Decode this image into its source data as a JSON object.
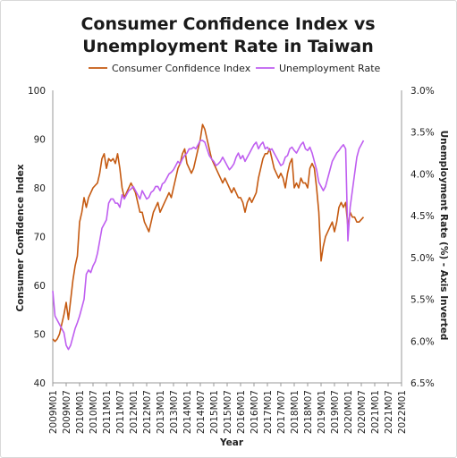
{
  "chart_data": {
    "type": "line",
    "title": "Consumer Confidence Index vs Unemployment Rate in Taiwan",
    "title_lines": [
      "Consumer Confidence Index vs",
      "Unemployment Rate in Taiwan"
    ],
    "xlabel": "Year",
    "ylabel": "Consumer Confidence Index",
    "y2label": "Unemployment Rate (%) - Axis Inverted",
    "ylim": [
      40,
      100
    ],
    "y2lim": [
      3.0,
      6.5
    ],
    "y2_inverted": true,
    "legend_position": "top",
    "yticks": [
      "40",
      "50",
      "60",
      "70",
      "80",
      "90",
      "100"
    ],
    "y2ticks": [
      "3.0%",
      "3.5%",
      "4.0%",
      "4.5%",
      "5.0%",
      "5.5%",
      "6.0%",
      "6.5%"
    ],
    "x_ticks": [
      "2009M01",
      "2009M07",
      "2010M01",
      "2010M07",
      "2011M01",
      "2011M07",
      "2012M01",
      "2012M07",
      "2013M01",
      "2013M07",
      "2014M01",
      "2014M07",
      "2015M01",
      "2015M07",
      "2016M01",
      "2016M07",
      "2017M01",
      "2017M07",
      "2018M01",
      "2018M07",
      "2019M01",
      "2019M07",
      "2020M01",
      "2020M07",
      "2021M01",
      "2021M07",
      "2022M01"
    ],
    "x_start": "2009M01",
    "x_end": "2022M01",
    "series": [
      {
        "name": "Consumer Confidence Index",
        "color": "#c55a11",
        "axis": "left",
        "points": [
          [
            0,
            49
          ],
          [
            1,
            48.5
          ],
          [
            2,
            49
          ],
          [
            3,
            50
          ],
          [
            4,
            52
          ],
          [
            5,
            54
          ],
          [
            6,
            56.5
          ],
          [
            7,
            53
          ],
          [
            8,
            57
          ],
          [
            9,
            61
          ],
          [
            10,
            64
          ],
          [
            11,
            66
          ],
          [
            12,
            73
          ],
          [
            13,
            75
          ],
          [
            14,
            78
          ],
          [
            15,
            76
          ],
          [
            16,
            78
          ],
          [
            17,
            79
          ],
          [
            18,
            80
          ],
          [
            19,
            80.5
          ],
          [
            20,
            81
          ],
          [
            21,
            83
          ],
          [
            22,
            86
          ],
          [
            23,
            87
          ],
          [
            24,
            84
          ],
          [
            25,
            86
          ],
          [
            26,
            85.5
          ],
          [
            27,
            86
          ],
          [
            28,
            85
          ],
          [
            29,
            87
          ],
          [
            30,
            84
          ],
          [
            31,
            80
          ],
          [
            32,
            78
          ],
          [
            33,
            79
          ],
          [
            34,
            80
          ],
          [
            35,
            81
          ],
          [
            36,
            80
          ],
          [
            37,
            79
          ],
          [
            38,
            77
          ],
          [
            39,
            75
          ],
          [
            40,
            75
          ],
          [
            41,
            73
          ],
          [
            42,
            72
          ],
          [
            43,
            71
          ],
          [
            44,
            73
          ],
          [
            45,
            75
          ],
          [
            46,
            76
          ],
          [
            47,
            77
          ],
          [
            48,
            75
          ],
          [
            49,
            76
          ],
          [
            50,
            77
          ],
          [
            51,
            78
          ],
          [
            52,
            79
          ],
          [
            53,
            78
          ],
          [
            54,
            80
          ],
          [
            55,
            82
          ],
          [
            56,
            84
          ],
          [
            57,
            85
          ],
          [
            58,
            87
          ],
          [
            59,
            88
          ],
          [
            60,
            85
          ],
          [
            61,
            84
          ],
          [
            62,
            83
          ],
          [
            63,
            84
          ],
          [
            64,
            86
          ],
          [
            65,
            88
          ],
          [
            66,
            90
          ],
          [
            67,
            93
          ],
          [
            68,
            92
          ],
          [
            69,
            90
          ],
          [
            70,
            88
          ],
          [
            71,
            86
          ],
          [
            72,
            85
          ],
          [
            73,
            84
          ],
          [
            74,
            83
          ],
          [
            75,
            82
          ],
          [
            76,
            81
          ],
          [
            77,
            82
          ],
          [
            78,
            81
          ],
          [
            79,
            80
          ],
          [
            80,
            79
          ],
          [
            81,
            80
          ],
          [
            82,
            79
          ],
          [
            83,
            78
          ],
          [
            84,
            78
          ],
          [
            85,
            77
          ],
          [
            86,
            75
          ],
          [
            87,
            77
          ],
          [
            88,
            78
          ],
          [
            89,
            77
          ],
          [
            90,
            78
          ],
          [
            91,
            79
          ],
          [
            92,
            82
          ],
          [
            93,
            84
          ],
          [
            94,
            86
          ],
          [
            95,
            87
          ],
          [
            96,
            87
          ],
          [
            97,
            88
          ],
          [
            98,
            86
          ],
          [
            99,
            84
          ],
          [
            100,
            83
          ],
          [
            101,
            82
          ],
          [
            102,
            83
          ],
          [
            103,
            82
          ],
          [
            104,
            80
          ],
          [
            105,
            83
          ],
          [
            106,
            85
          ],
          [
            107,
            86
          ],
          [
            108,
            80
          ],
          [
            109,
            81
          ],
          [
            110,
            80
          ],
          [
            111,
            82
          ],
          [
            112,
            81
          ],
          [
            113,
            81
          ],
          [
            114,
            80
          ],
          [
            115,
            84
          ],
          [
            116,
            85
          ],
          [
            117,
            84
          ],
          [
            118,
            80
          ],
          [
            119,
            75
          ],
          [
            120,
            65
          ],
          [
            121,
            68
          ],
          [
            122,
            70
          ],
          [
            123,
            71
          ],
          [
            124,
            72
          ],
          [
            125,
            73
          ],
          [
            126,
            71
          ],
          [
            127,
            73
          ],
          [
            128,
            76
          ],
          [
            129,
            77
          ],
          [
            130,
            76
          ],
          [
            131,
            77
          ],
          [
            132,
            72
          ],
          [
            133,
            75
          ],
          [
            134,
            74
          ],
          [
            135,
            74
          ],
          [
            136,
            73
          ],
          [
            137,
            73
          ],
          [
            138,
            73.5
          ],
          [
            139,
            74
          ]
        ]
      },
      {
        "name": "Unemployment Rate",
        "color": "#bf5ef0",
        "axis": "right",
        "points": [
          [
            0,
            5.4
          ],
          [
            1,
            5.7
          ],
          [
            2,
            5.75
          ],
          [
            3,
            5.8
          ],
          [
            4,
            5.85
          ],
          [
            5,
            5.9
          ],
          [
            6,
            6.05
          ],
          [
            7,
            6.1
          ],
          [
            8,
            6.05
          ],
          [
            9,
            5.95
          ],
          [
            10,
            5.85
          ],
          [
            11,
            5.78
          ],
          [
            12,
            5.7
          ],
          [
            13,
            5.6
          ],
          [
            14,
            5.5
          ],
          [
            15,
            5.2
          ],
          [
            16,
            5.15
          ],
          [
            17,
            5.18
          ],
          [
            18,
            5.1
          ],
          [
            19,
            5.05
          ],
          [
            20,
            4.95
          ],
          [
            21,
            4.8
          ],
          [
            22,
            4.65
          ],
          [
            23,
            4.6
          ],
          [
            24,
            4.55
          ],
          [
            25,
            4.35
          ],
          [
            26,
            4.3
          ],
          [
            27,
            4.3
          ],
          [
            28,
            4.35
          ],
          [
            29,
            4.35
          ],
          [
            30,
            4.4
          ],
          [
            31,
            4.25
          ],
          [
            32,
            4.3
          ],
          [
            33,
            4.25
          ],
          [
            34,
            4.2
          ],
          [
            35,
            4.18
          ],
          [
            36,
            4.15
          ],
          [
            37,
            4.2
          ],
          [
            38,
            4.25
          ],
          [
            39,
            4.3
          ],
          [
            40,
            4.2
          ],
          [
            41,
            4.25
          ],
          [
            42,
            4.3
          ],
          [
            43,
            4.28
          ],
          [
            44,
            4.22
          ],
          [
            45,
            4.2
          ],
          [
            46,
            4.15
          ],
          [
            47,
            4.15
          ],
          [
            48,
            4.2
          ],
          [
            49,
            4.12
          ],
          [
            50,
            4.1
          ],
          [
            51,
            4.05
          ],
          [
            52,
            4.0
          ],
          [
            53,
            3.98
          ],
          [
            54,
            3.95
          ],
          [
            55,
            3.9
          ],
          [
            56,
            3.85
          ],
          [
            57,
            3.88
          ],
          [
            58,
            3.82
          ],
          [
            59,
            3.78
          ],
          [
            60,
            3.75
          ],
          [
            61,
            3.7
          ],
          [
            62,
            3.7
          ],
          [
            63,
            3.68
          ],
          [
            64,
            3.7
          ],
          [
            65,
            3.65
          ],
          [
            66,
            3.6
          ],
          [
            67,
            3.6
          ],
          [
            68,
            3.62
          ],
          [
            69,
            3.7
          ],
          [
            70,
            3.78
          ],
          [
            71,
            3.82
          ],
          [
            72,
            3.85
          ],
          [
            73,
            3.9
          ],
          [
            74,
            3.88
          ],
          [
            75,
            3.85
          ],
          [
            76,
            3.8
          ],
          [
            77,
            3.85
          ],
          [
            78,
            3.9
          ],
          [
            79,
            3.95
          ],
          [
            80,
            3.92
          ],
          [
            81,
            3.88
          ],
          [
            82,
            3.8
          ],
          [
            83,
            3.75
          ],
          [
            84,
            3.82
          ],
          [
            85,
            3.78
          ],
          [
            86,
            3.85
          ],
          [
            87,
            3.8
          ],
          [
            88,
            3.75
          ],
          [
            89,
            3.7
          ],
          [
            90,
            3.65
          ],
          [
            91,
            3.62
          ],
          [
            92,
            3.7
          ],
          [
            93,
            3.65
          ],
          [
            94,
            3.62
          ],
          [
            95,
            3.7
          ],
          [
            96,
            3.68
          ],
          [
            97,
            3.72
          ],
          [
            98,
            3.7
          ],
          [
            99,
            3.75
          ],
          [
            100,
            3.8
          ],
          [
            101,
            3.85
          ],
          [
            102,
            3.9
          ],
          [
            103,
            3.88
          ],
          [
            104,
            3.8
          ],
          [
            105,
            3.78
          ],
          [
            106,
            3.7
          ],
          [
            107,
            3.68
          ],
          [
            108,
            3.72
          ],
          [
            109,
            3.75
          ],
          [
            110,
            3.7
          ],
          [
            111,
            3.65
          ],
          [
            112,
            3.62
          ],
          [
            113,
            3.7
          ],
          [
            114,
            3.72
          ],
          [
            115,
            3.68
          ],
          [
            116,
            3.75
          ],
          [
            117,
            3.85
          ],
          [
            118,
            3.95
          ],
          [
            119,
            4.1
          ],
          [
            120,
            4.15
          ],
          [
            121,
            4.2
          ],
          [
            122,
            4.15
          ],
          [
            123,
            4.05
          ],
          [
            124,
            3.95
          ],
          [
            125,
            3.85
          ],
          [
            126,
            3.8
          ],
          [
            127,
            3.75
          ],
          [
            128,
            3.72
          ],
          [
            129,
            3.68
          ],
          [
            130,
            3.65
          ],
          [
            131,
            3.7
          ],
          [
            132,
            4.8
          ],
          [
            133,
            4.4
          ],
          [
            134,
            4.2
          ],
          [
            135,
            4.0
          ],
          [
            136,
            3.8
          ],
          [
            137,
            3.7
          ],
          [
            138,
            3.65
          ],
          [
            139,
            3.6
          ]
        ]
      }
    ]
  }
}
